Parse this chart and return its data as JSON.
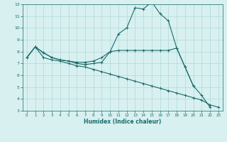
{
  "line1_x": [
    0,
    1,
    2,
    3,
    4,
    5,
    6,
    7,
    8,
    9,
    10,
    11,
    12,
    13,
    14,
    15,
    16,
    17,
    18,
    19,
    20,
    21,
    22
  ],
  "line1_y": [
    7.5,
    8.4,
    7.9,
    7.5,
    7.3,
    7.2,
    7.0,
    6.9,
    7.0,
    7.1,
    8.0,
    9.5,
    10.0,
    11.7,
    11.6,
    12.2,
    11.2,
    10.6,
    8.3,
    6.7,
    5.1,
    4.3,
    3.3
  ],
  "line2_x": [
    0,
    1,
    2,
    3,
    4,
    5,
    6,
    7,
    8,
    9,
    10,
    11,
    12,
    13,
    14,
    15,
    16,
    17,
    18,
    19,
    20
  ],
  "line2_y": [
    7.5,
    8.4,
    7.9,
    7.5,
    7.3,
    7.2,
    7.1,
    7.1,
    7.2,
    7.5,
    8.0,
    8.1,
    8.1,
    8.1,
    8.1,
    8.1,
    8.1,
    8.1,
    8.3,
    6.7,
    5.1
  ],
  "line3_x": [
    0,
    1,
    2,
    3,
    4,
    5,
    6,
    7,
    8,
    9,
    10,
    11,
    12,
    13,
    14,
    15,
    16,
    17,
    18,
    19,
    20,
    21,
    22,
    23
  ],
  "line3_y": [
    7.5,
    8.4,
    7.5,
    7.3,
    7.2,
    7.0,
    6.8,
    6.7,
    6.5,
    6.3,
    6.1,
    5.9,
    5.7,
    5.5,
    5.3,
    5.1,
    4.9,
    4.7,
    4.5,
    4.3,
    4.1,
    3.9,
    3.5,
    3.3
  ],
  "color": "#1a6b6b",
  "bg_color": "#d8f0f0",
  "grid_color": "#b0d8d8",
  "xlabel": "Humidex (Indice chaleur)",
  "xlim": [
    -0.5,
    23.5
  ],
  "ylim": [
    3,
    12
  ],
  "yticks": [
    3,
    4,
    5,
    6,
    7,
    8,
    9,
    10,
    11,
    12
  ],
  "xticks": [
    0,
    1,
    2,
    3,
    4,
    5,
    6,
    7,
    8,
    9,
    10,
    11,
    12,
    13,
    14,
    15,
    16,
    17,
    18,
    19,
    20,
    21,
    22,
    23
  ]
}
